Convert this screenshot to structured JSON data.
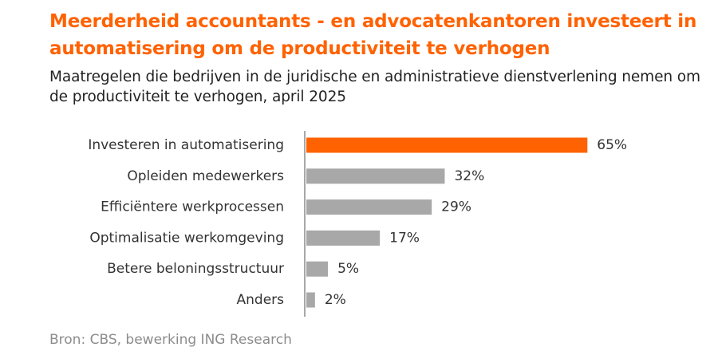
{
  "chart_data": {
    "type": "bar",
    "orientation": "horizontal",
    "title": "Meerderheid accountants - en advocatenkantoren investeert in automatisering om de productiviteit te verhogen",
    "subtitle": "Maatregelen die bedrijven in de juridische en administratieve dienstverlening nemen om de productiviteit te verhogen, april 2025",
    "categories": [
      "Investeren in automatisering",
      "Opleiden medewerkers",
      "Efficiëntere werkprocessen",
      "Optimalisatie werkomgeving",
      "Betere beloningsstructuur",
      "Anders"
    ],
    "values": [
      65,
      32,
      29,
      17,
      5,
      2
    ],
    "value_labels": [
      "65%",
      "32%",
      "29%",
      "17%",
      "5%",
      "2%"
    ],
    "xlim": [
      0,
      100
    ],
    "grid": false,
    "legend": "none",
    "highlight_index": 0,
    "colors": {
      "highlight": "#ff6200",
      "bar": "#a8a8a8",
      "axis": "#a8a8a8"
    }
  },
  "source": "Bron: CBS, bewerking ING Research"
}
